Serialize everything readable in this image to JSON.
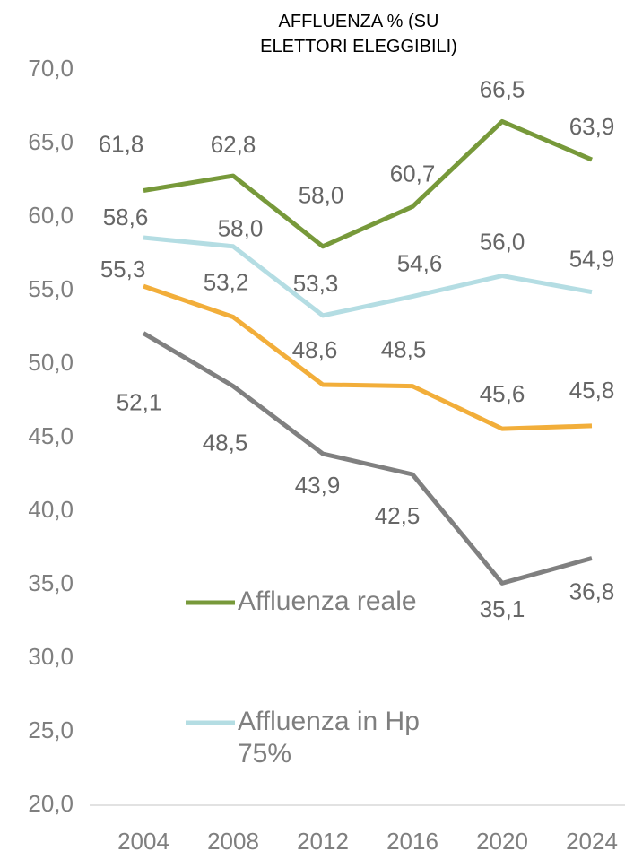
{
  "chart_data": {
    "type": "line",
    "title": "AFFLUENZA % (SU ELETTORI ELEGGIBILI)",
    "categories": [
      "2004",
      "2008",
      "2012",
      "2016",
      "2020",
      "2024"
    ],
    "series": [
      {
        "name": "Affluenza reale",
        "color": "#77993a",
        "values": [
          61.8,
          62.8,
          58.0,
          60.7,
          66.5,
          63.9
        ],
        "value_labels": [
          "61,8",
          "62,8",
          "58,0",
          "60,7",
          "66,5",
          "63,9"
        ]
      },
      {
        "name": "Affluenza in Hp 75%",
        "color": "#b4dde3",
        "values": [
          58.6,
          58.0,
          53.3,
          54.6,
          56.0,
          54.9
        ],
        "value_labels": [
          "58,6",
          "58,0",
          "53,3",
          "54,6",
          "56,0",
          "54,9"
        ]
      },
      {
        "color": "#f2ae3a",
        "values": [
          55.3,
          53.2,
          48.6,
          48.5,
          45.6,
          45.8
        ],
        "value_labels": [
          "55,3",
          "53,2",
          "48,6",
          "48,5",
          "45,6",
          "45,8"
        ]
      },
      {
        "color": "#808080",
        "values": [
          52.1,
          48.5,
          43.9,
          42.5,
          35.1,
          36.8
        ],
        "value_labels": [
          "52,1",
          "48,5",
          "43,9",
          "42,5",
          "35,1",
          "36,8"
        ]
      }
    ],
    "ylim": [
      20,
      70
    ],
    "yticks": [
      {
        "value": 20,
        "label": "20,0"
      },
      {
        "value": 25,
        "label": "25,0"
      },
      {
        "value": 30,
        "label": "30,0"
      },
      {
        "value": 35,
        "label": "35,0"
      },
      {
        "value": 40,
        "label": "40,0"
      },
      {
        "value": 45,
        "label": "45,0"
      },
      {
        "value": 50,
        "label": "50,0"
      },
      {
        "value": 55,
        "label": "55,0"
      },
      {
        "value": 60,
        "label": "60,0"
      },
      {
        "value": 65,
        "label": "65,0"
      },
      {
        "value": 70,
        "label": "70,0"
      }
    ],
    "grid": false
  }
}
